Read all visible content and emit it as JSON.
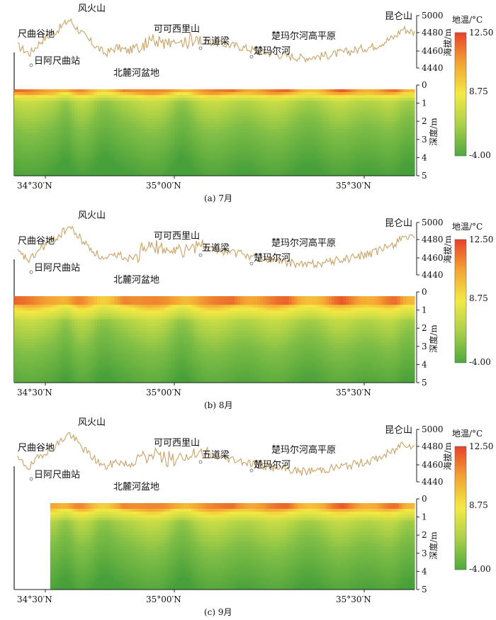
{
  "chart_data": [
    {
      "type": "heatmap",
      "caption": "(a) 7月",
      "x_ticks": [
        "34°30′N",
        "35°00′N",
        "35°30′N"
      ],
      "elevation_axis": {
        "label": "海拔/m",
        "ticks": [
          5000,
          4480,
          4460,
          4440
        ]
      },
      "depth_axis": {
        "label": "深度/m",
        "ticks": [
          0,
          1,
          2,
          3,
          4,
          5
        ],
        "range": [
          0,
          5
        ]
      },
      "colorbar": {
        "label": "地温/°C",
        "max": "12.50",
        "mid": "8.75",
        "min": "-4.00",
        "colors": [
          "#e8412b",
          "#f2a533",
          "#f3ea44",
          "#a9d04a",
          "#4ea93f"
        ]
      },
      "place_labels": [
        {
          "name": "尺曲谷地"
        },
        {
          "name": "风火山"
        },
        {
          "name": "日阿尺曲站"
        },
        {
          "name": "北麓河盆地"
        },
        {
          "name": "可可西里山"
        },
        {
          "name": "五道梁"
        },
        {
          "name": "楚玛尔河"
        },
        {
          "name": "楚玛尔河高平原"
        },
        {
          "name": "昆仑山"
        }
      ],
      "surface_warm_layer_depth_m": 0.4,
      "data_start_fraction": 0.0
    },
    {
      "type": "heatmap",
      "caption": "(b) 8月",
      "x_ticks": [
        "34°30′N",
        "35°00′N",
        "35°30′N"
      ],
      "elevation_axis": {
        "label": "海拔/m",
        "ticks": [
          5000,
          4480,
          4460,
          4440
        ]
      },
      "depth_axis": {
        "label": "深度/m",
        "ticks": [
          0,
          1,
          2,
          3,
          4,
          5
        ],
        "range": [
          0,
          5
        ]
      },
      "colorbar": {
        "label": "地温/°C",
        "max": "12.50",
        "mid": "8.75",
        "min": "-4.00",
        "colors": [
          "#e8412b",
          "#f2a533",
          "#f3ea44",
          "#a9d04a",
          "#4ea93f"
        ]
      },
      "place_labels": [
        {
          "name": "尺曲谷地"
        },
        {
          "name": "风火山"
        },
        {
          "name": "日阿尺曲站"
        },
        {
          "name": "北麓河盆地"
        },
        {
          "name": "可可西里山"
        },
        {
          "name": "五道梁"
        },
        {
          "name": "楚玛尔河"
        },
        {
          "name": "楚玛尔河高平原"
        },
        {
          "name": "昆仑山"
        }
      ],
      "surface_warm_layer_depth_m": 0.8,
      "data_start_fraction": 0.0
    },
    {
      "type": "heatmap",
      "caption": "(c) 9月",
      "x_ticks": [
        "34°30′N",
        "35°00′N",
        "35°30′N"
      ],
      "elevation_axis": {
        "label": "海拔/m",
        "ticks": [
          5000,
          4480,
          4460,
          4440
        ]
      },
      "depth_axis": {
        "label": "深度/m",
        "ticks": [
          0,
          1,
          2,
          3,
          4,
          5
        ],
        "range": [
          0,
          5
        ]
      },
      "colorbar": {
        "label": "地温/°C",
        "max": "12.50",
        "mid": "8.75",
        "min": "-4.00",
        "colors": [
          "#e8412b",
          "#f2a533",
          "#f3ea44",
          "#a9d04a",
          "#4ea93f"
        ]
      },
      "place_labels": [
        {
          "name": "尺曲谷地"
        },
        {
          "name": "风火山"
        },
        {
          "name": "日阿尺曲站"
        },
        {
          "name": "北麓河盆地"
        },
        {
          "name": "可可西里山"
        },
        {
          "name": "五道梁"
        },
        {
          "name": "楚玛尔河"
        },
        {
          "name": "楚玛尔河高平原"
        },
        {
          "name": "昆仑山"
        }
      ],
      "surface_warm_layer_depth_m": 0.6,
      "data_start_fraction": 0.09
    }
  ]
}
